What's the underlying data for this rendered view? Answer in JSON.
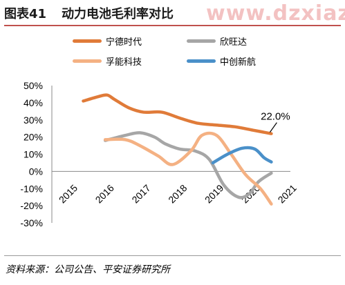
{
  "header": {
    "figure_number": "图表41",
    "title": "动力电池毛利率对比",
    "watermark": "www.dzxiazaigroup.com"
  },
  "footer": {
    "source": "资料来源：公司公告、平安证券研究所"
  },
  "chart_data": {
    "type": "line",
    "x": [
      "2015",
      "2016",
      "2017",
      "2018",
      "2019",
      "2020",
      "2021"
    ],
    "ylim": [
      -30,
      50
    ],
    "yticks": [
      -30,
      -20,
      -10,
      0,
      10,
      20,
      30,
      40,
      50
    ],
    "ytick_labels": [
      "-30%",
      "-20%",
      "-10%",
      "0%",
      "10%",
      "20%",
      "30%",
      "40%",
      "50%"
    ],
    "grid": false,
    "series": [
      {
        "name": "宁德时代",
        "color": "#E07B39",
        "points": [
          [
            0.35,
            41
          ],
          [
            0.75,
            43.5
          ],
          [
            1.0,
            44.5
          ],
          [
            1.2,
            42
          ],
          [
            1.6,
            37
          ],
          [
            2.0,
            34.5
          ],
          [
            2.5,
            34.5
          ],
          [
            3.0,
            31
          ],
          [
            3.5,
            28
          ],
          [
            4.0,
            27
          ],
          [
            4.5,
            26
          ],
          [
            5.0,
            24
          ],
          [
            5.5,
            22
          ]
        ]
      },
      {
        "name": "欣旺达",
        "color": "#A6A6A6",
        "points": [
          [
            0.95,
            18
          ],
          [
            1.5,
            21
          ],
          [
            1.9,
            22.5
          ],
          [
            2.3,
            20
          ],
          [
            2.6,
            16
          ],
          [
            3.0,
            13
          ],
          [
            3.4,
            12
          ],
          [
            3.8,
            7
          ],
          [
            4.2,
            -8
          ],
          [
            4.6,
            -15
          ],
          [
            4.9,
            -13
          ],
          [
            5.15,
            -6
          ],
          [
            5.5,
            -1
          ]
        ]
      },
      {
        "name": "孚能科技",
        "color": "#F4B183",
        "points": [
          [
            0.95,
            18.5
          ],
          [
            1.5,
            18.5
          ],
          [
            1.9,
            15
          ],
          [
            2.4,
            9
          ],
          [
            2.8,
            4
          ],
          [
            3.3,
            12
          ],
          [
            3.6,
            21
          ],
          [
            4.0,
            21
          ],
          [
            4.4,
            10
          ],
          [
            4.8,
            -2
          ],
          [
            5.2,
            -10
          ],
          [
            5.5,
            -19
          ]
        ]
      },
      {
        "name": "中创新航",
        "color": "#4A90C9",
        "points": [
          [
            3.9,
            5
          ],
          [
            4.3,
            10
          ],
          [
            4.7,
            13.5
          ],
          [
            5.05,
            13
          ],
          [
            5.3,
            8
          ],
          [
            5.5,
            5.5
          ]
        ]
      }
    ],
    "annotations": [
      {
        "text": "22.0%",
        "series": "宁德时代",
        "x": 5.5,
        "y": 22
      }
    ]
  }
}
